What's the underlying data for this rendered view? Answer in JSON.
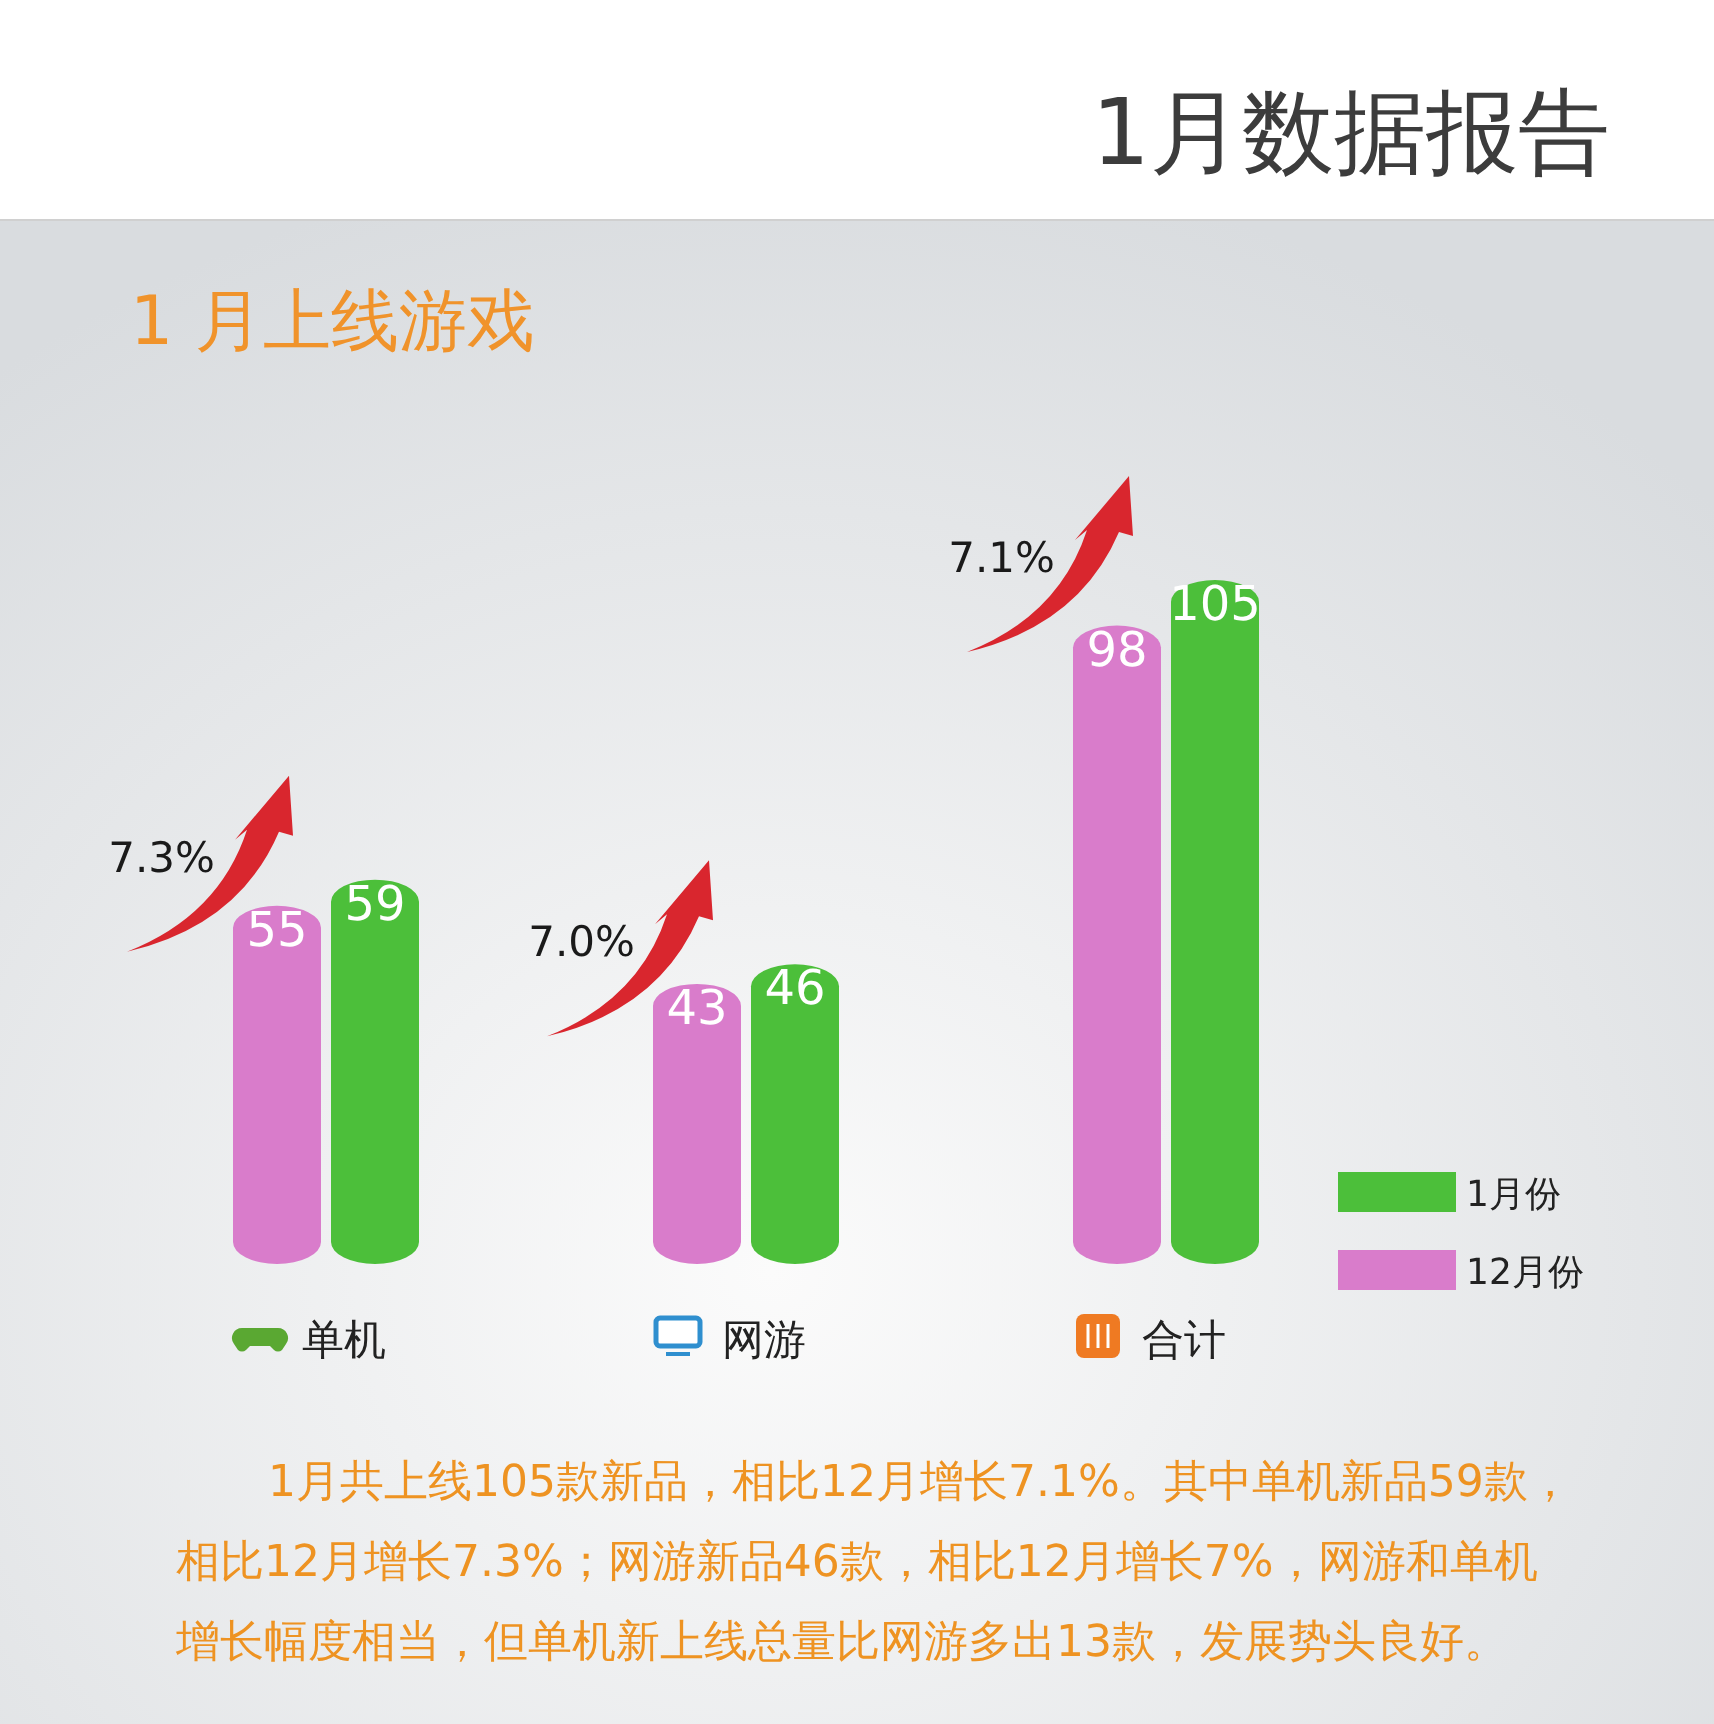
{
  "chart_data": {
    "type": "bar",
    "title": "1月数据报告",
    "subtitle": "1 月上线游戏",
    "categories": [
      "单机",
      "网游",
      "合计"
    ],
    "series": [
      {
        "name": "12月份",
        "color": "#d97ccb",
        "values": [
          55,
          43,
          98
        ]
      },
      {
        "name": "1月份",
        "color": "#4cbf3a",
        "values": [
          59,
          46,
          105
        ]
      }
    ],
    "data_labels": true,
    "legend": "right",
    "annotations": [
      "7.3%",
      "7.0%",
      "7.1%",
      "1月共上线105款新品，相比12月增长7.1%。其中单机新品59款，相比12月增长7.3%；网游新品46款，相比12月增长7%，网游和单机增长幅度相当，但单机新上线总量比网游多出13款，发展势头良好。"
    ]
  }
}
